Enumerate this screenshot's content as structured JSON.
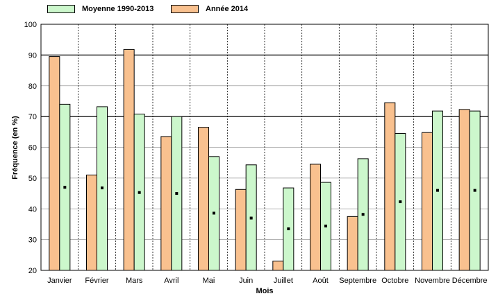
{
  "chart_data": {
    "type": "bar",
    "categories": [
      "Janvier",
      "Février",
      "Mars",
      "Avril",
      "Mai",
      "Juin",
      "Juillet",
      "Août",
      "Septembre",
      "Octobre",
      "Novembre",
      "Décembre"
    ],
    "series": [
      {
        "name": "Année 2014",
        "color": "#F9C18F",
        "values": [
          89.5,
          51,
          91.8,
          63.5,
          66.5,
          46.3,
          23,
          54.5,
          37.5,
          74.5,
          64.8,
          72.3
        ]
      },
      {
        "name": "Moyenne 1990-2013",
        "color": "#CCF7CC",
        "values": [
          74,
          73.2,
          70.8,
          70,
          57,
          54.3,
          46.8,
          48.6,
          56.3,
          64.5,
          71.8,
          71.8
        ]
      }
    ],
    "markers": [
      47,
      46.8,
      45.3,
      45,
      38.6,
      37,
      33.5,
      34.4,
      38.2,
      42.3,
      46,
      46
    ],
    "xlabel": "Mois",
    "ylabel": "Fréquence (en %)",
    "ylim": [
      20,
      100
    ],
    "yticks": [
      20,
      30,
      40,
      50,
      60,
      70,
      80,
      90,
      100
    ],
    "grid": true,
    "legend_position": "top-left"
  }
}
